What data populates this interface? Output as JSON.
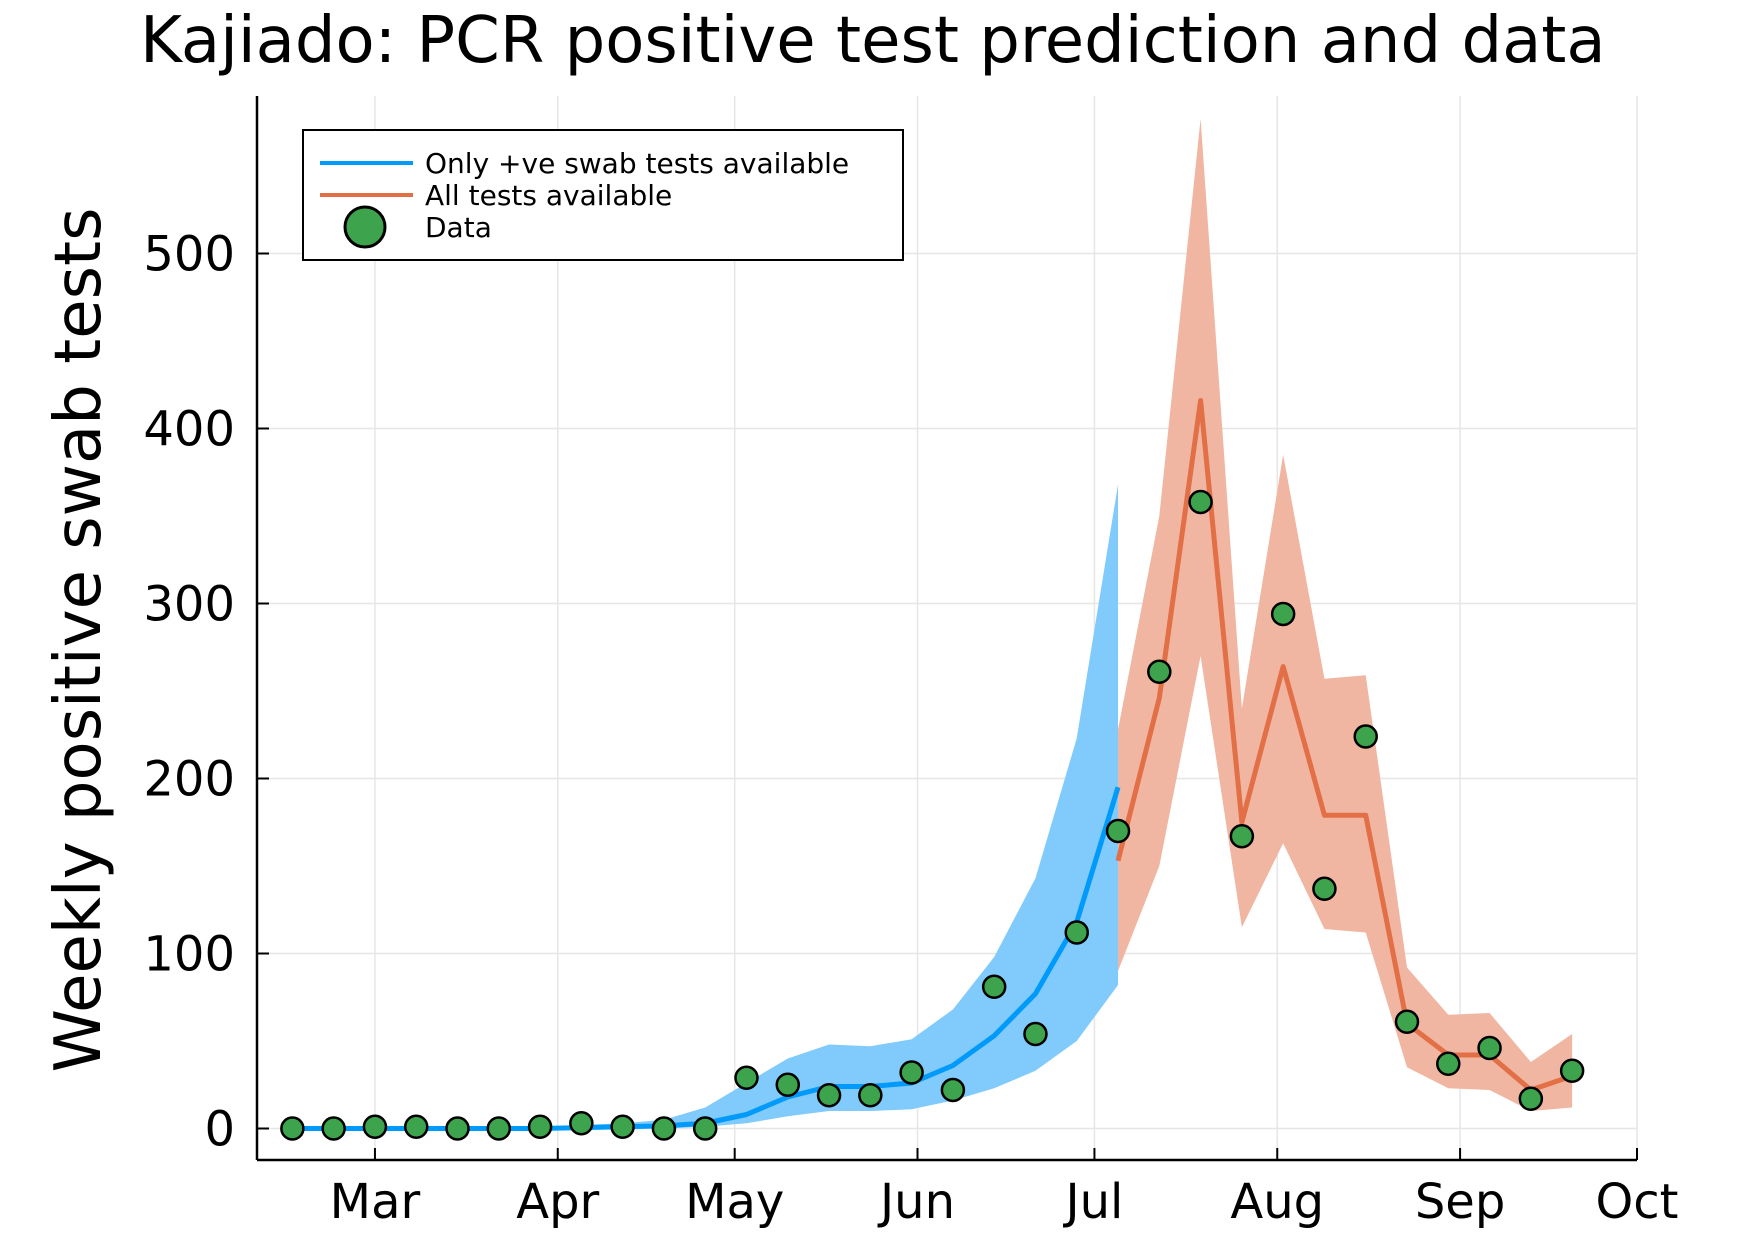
{
  "chart_data": {
    "type": "line",
    "title": "Kajiado: PCR positive test prediction and data",
    "ylabel": "Weekly positive swab tests",
    "xlabel": "",
    "x_tick_labels": [
      "Mar",
      "Apr",
      "May",
      "Jun",
      "Jul",
      "Aug",
      "Sep",
      "Oct"
    ],
    "x_tick_dates": [
      "2020-03-01",
      "2020-04-01",
      "2020-05-01",
      "2020-06-01",
      "2020-07-01",
      "2020-08-01",
      "2020-09-01",
      "2020-10-01"
    ],
    "y_ticks": [
      0,
      100,
      200,
      300,
      400,
      500
    ],
    "ylim": [
      -18,
      590
    ],
    "xlim": [
      "2020-02-10",
      "2020-10-01"
    ],
    "grid": true,
    "legend_position": "top-left",
    "colors": {
      "blue": "#009AFA",
      "blue_band": "#80CAFC",
      "orange": "#E26F46",
      "orange_band": "#F0B6A2",
      "data": "#3DA44D"
    },
    "series": [
      {
        "name": "Only +ve swab tests available",
        "dates": [
          "2020-02-16",
          "2020-02-23",
          "2020-03-01",
          "2020-03-08",
          "2020-03-15",
          "2020-03-22",
          "2020-03-29",
          "2020-04-05",
          "2020-04-12",
          "2020-04-19",
          "2020-04-26",
          "2020-05-03",
          "2020-05-10",
          "2020-05-17",
          "2020-05-24",
          "2020-05-31",
          "2020-06-07",
          "2020-06-14",
          "2020-06-21",
          "2020-06-28",
          "2020-07-05"
        ],
        "values": [
          0,
          0,
          0,
          0,
          0,
          0,
          0,
          0.5,
          1,
          1.5,
          3,
          8,
          18,
          24,
          24,
          26,
          36,
          53,
          77,
          118,
          195
        ],
        "lower": [
          0,
          0,
          0,
          0,
          0,
          0,
          0,
          0,
          0,
          0,
          1,
          3,
          7,
          10,
          10,
          11,
          16,
          23,
          33,
          50,
          82
        ],
        "upper": [
          0,
          0,
          0,
          0,
          0,
          0,
          1,
          2,
          3,
          5,
          12,
          26,
          40,
          48,
          47,
          51,
          68,
          98,
          143,
          223,
          368
        ]
      },
      {
        "name": "All tests available",
        "dates": [
          "2020-07-05",
          "2020-07-12",
          "2020-07-19",
          "2020-07-26",
          "2020-08-02",
          "2020-08-09",
          "2020-08-16",
          "2020-08-23",
          "2020-08-30",
          "2020-09-06",
          "2020-09-13",
          "2020-09-20"
        ],
        "values": [
          153,
          246,
          416,
          175,
          264,
          179,
          179,
          60,
          42,
          42,
          22,
          30
        ],
        "lower": [
          90,
          150,
          270,
          115,
          163,
          114,
          112,
          35,
          23,
          22,
          10,
          12
        ],
        "upper": [
          228,
          350,
          577,
          240,
          385,
          257,
          259,
          92,
          65,
          66,
          38,
          54
        ]
      }
    ],
    "data_points": {
      "name": "Data",
      "dates": [
        "2020-02-16",
        "2020-02-23",
        "2020-03-01",
        "2020-03-08",
        "2020-03-15",
        "2020-03-22",
        "2020-03-29",
        "2020-04-05",
        "2020-04-12",
        "2020-04-19",
        "2020-04-26",
        "2020-05-03",
        "2020-05-10",
        "2020-05-17",
        "2020-05-24",
        "2020-05-31",
        "2020-06-07",
        "2020-06-14",
        "2020-06-21",
        "2020-06-28",
        "2020-07-05",
        "2020-07-12",
        "2020-07-19",
        "2020-07-26",
        "2020-08-02",
        "2020-08-09",
        "2020-08-16",
        "2020-08-23",
        "2020-08-30",
        "2020-09-06",
        "2020-09-13",
        "2020-09-20"
      ],
      "values": [
        0,
        0,
        1,
        1,
        0,
        0,
        1,
        3,
        1,
        0,
        0,
        29,
        25,
        19,
        19,
        32,
        22,
        81,
        54,
        112,
        170,
        261,
        358,
        167,
        294,
        137,
        224,
        61,
        37,
        46,
        17,
        33
      ]
    }
  }
}
